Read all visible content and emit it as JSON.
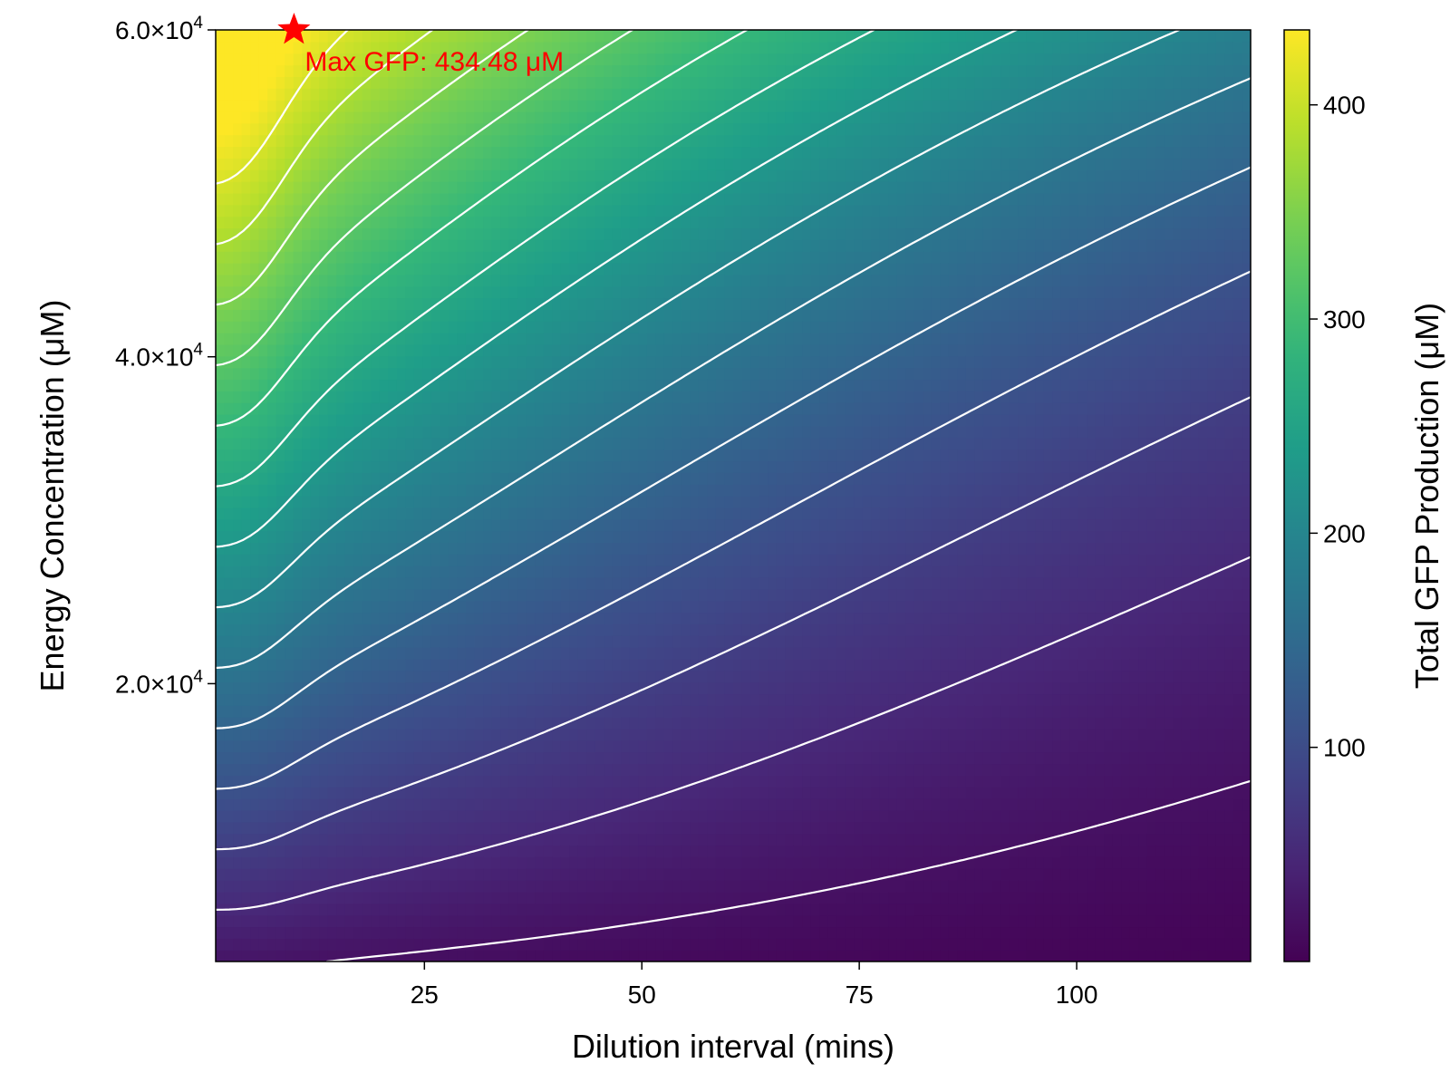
{
  "chart_data": {
    "type": "heatmap",
    "overlay": "contour",
    "xlabel": "Dilution interval (mins)",
    "ylabel": "Energy Concentration (μM)",
    "xlim": [
      1,
      120
    ],
    "ylim": [
      3000,
      60000
    ],
    "x_ticks": [
      25,
      50,
      75,
      100
    ],
    "x_tick_labels": [
      "25",
      "50",
      "75",
      "100"
    ],
    "y_ticks": [
      20000,
      40000,
      60000
    ],
    "y_tick_labels": [
      {
        "mantissa": "2.0×10",
        "exp": "4"
      },
      {
        "mantissa": "4.0×10",
        "exp": "4"
      },
      {
        "mantissa": "6.0×10",
        "exp": "4"
      }
    ],
    "colorbar": {
      "label": "Total GFP Production (μM)",
      "colormap": "viridis",
      "range": [
        0,
        435
      ],
      "ticks": [
        100,
        200,
        300,
        400
      ],
      "tick_labels": [
        "100",
        "200",
        "300",
        "400"
      ]
    },
    "contour_color": "#ffffff",
    "contour_levels": [
      20,
      50,
      80,
      110,
      140,
      170,
      200,
      230,
      260,
      290,
      320,
      350,
      380,
      410
    ],
    "max_point": {
      "x": 10,
      "y": 60000,
      "value": 434.48,
      "label": "Max GFP: 434.48 μM",
      "color": "#ff0000",
      "marker": "star"
    }
  }
}
